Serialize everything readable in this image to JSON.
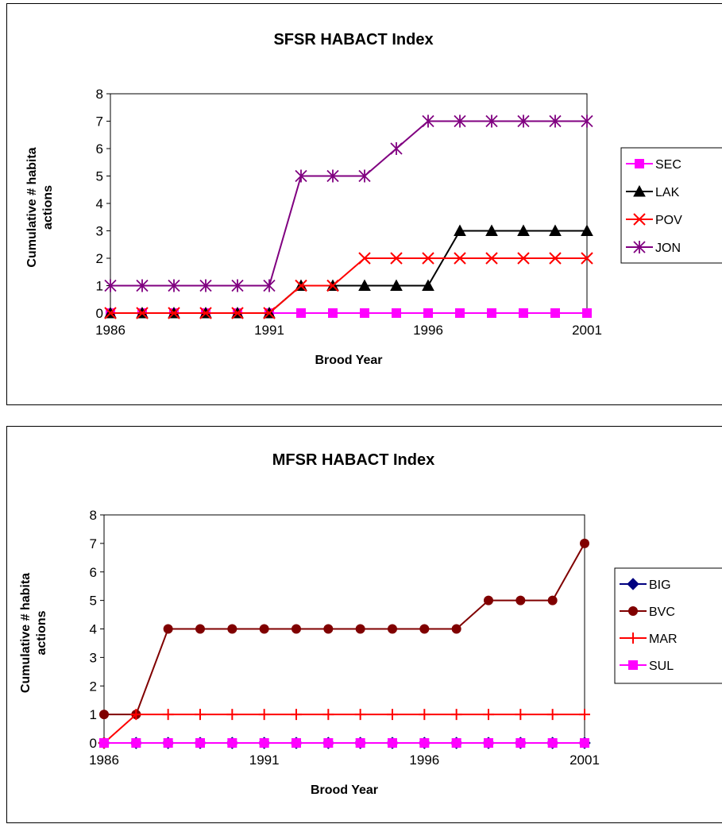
{
  "chart_data": [
    {
      "type": "line",
      "title": "SFSR HABACT Index",
      "xlabel": "Brood Year",
      "ylabel": "Cumulative # habitat actions",
      "ylabel_lines": [
        "Cumulative # habita",
        "actions"
      ],
      "x": [
        1986,
        1987,
        1988,
        1989,
        1990,
        1991,
        1992,
        1993,
        1994,
        1995,
        1996,
        1997,
        1998,
        1999,
        2000,
        2001
      ],
      "xticks": [
        "1986",
        "1991",
        "1996",
        "2001"
      ],
      "yticks": [
        "0",
        "1",
        "2",
        "3",
        "4",
        "5",
        "6",
        "7",
        "8"
      ],
      "ylim": [
        0,
        8
      ],
      "grid": false,
      "legend_position": "right",
      "series": [
        {
          "name": "SEC",
          "color": "#ff00ff",
          "marker": "square",
          "values": [
            0,
            0,
            0,
            0,
            0,
            0,
            0,
            0,
            0,
            0,
            0,
            0,
            0,
            0,
            0,
            0
          ]
        },
        {
          "name": "LAK",
          "color": "#000000",
          "marker": "triangle",
          "values": [
            0,
            0,
            0,
            0,
            0,
            0,
            1,
            1,
            1,
            1,
            1,
            3,
            3,
            3,
            3,
            3
          ]
        },
        {
          "name": "POV",
          "color": "#ff0000",
          "marker": "x",
          "values": [
            0,
            0,
            0,
            0,
            0,
            0,
            1,
            1,
            2,
            2,
            2,
            2,
            2,
            2,
            2,
            2
          ]
        },
        {
          "name": "JON",
          "color": "#800080",
          "marker": "star",
          "values": [
            1,
            1,
            1,
            1,
            1,
            1,
            5,
            5,
            5,
            6,
            7,
            7,
            7,
            7,
            7,
            7
          ]
        }
      ]
    },
    {
      "type": "line",
      "title": "MFSR HABACT Index",
      "xlabel": "Brood Year",
      "ylabel": "Cumulative # habitat actions",
      "ylabel_lines": [
        "Cumulative # habita",
        "actions"
      ],
      "x": [
        1986,
        1987,
        1988,
        1989,
        1990,
        1991,
        1992,
        1993,
        1994,
        1995,
        1996,
        1997,
        1998,
        1999,
        2000,
        2001
      ],
      "xticks": [
        "1986",
        "1991",
        "1996",
        "2001"
      ],
      "yticks": [
        "0",
        "1",
        "2",
        "3",
        "4",
        "5",
        "6",
        "7",
        "8"
      ],
      "ylim": [
        0,
        8
      ],
      "grid": false,
      "legend_position": "right",
      "series": [
        {
          "name": "BIG",
          "color": "#000080",
          "marker": "diamond",
          "values": [
            0,
            0,
            0,
            0,
            0,
            0,
            0,
            0,
            0,
            0,
            0,
            0,
            0,
            0,
            0,
            0
          ]
        },
        {
          "name": "BVC",
          "color": "#800000",
          "marker": "circle",
          "values": [
            1,
            1,
            4,
            4,
            4,
            4,
            4,
            4,
            4,
            4,
            4,
            4,
            5,
            5,
            5,
            7
          ]
        },
        {
          "name": "MAR",
          "color": "#ff0000",
          "marker": "plus",
          "values": [
            0,
            1,
            1,
            1,
            1,
            1,
            1,
            1,
            1,
            1,
            1,
            1,
            1,
            1,
            1,
            1
          ]
        },
        {
          "name": "SUL",
          "color": "#ff00ff",
          "marker": "square",
          "values": [
            0,
            0,
            0,
            0,
            0,
            0,
            0,
            0,
            0,
            0,
            0,
            0,
            0,
            0,
            0,
            0
          ]
        }
      ]
    }
  ]
}
